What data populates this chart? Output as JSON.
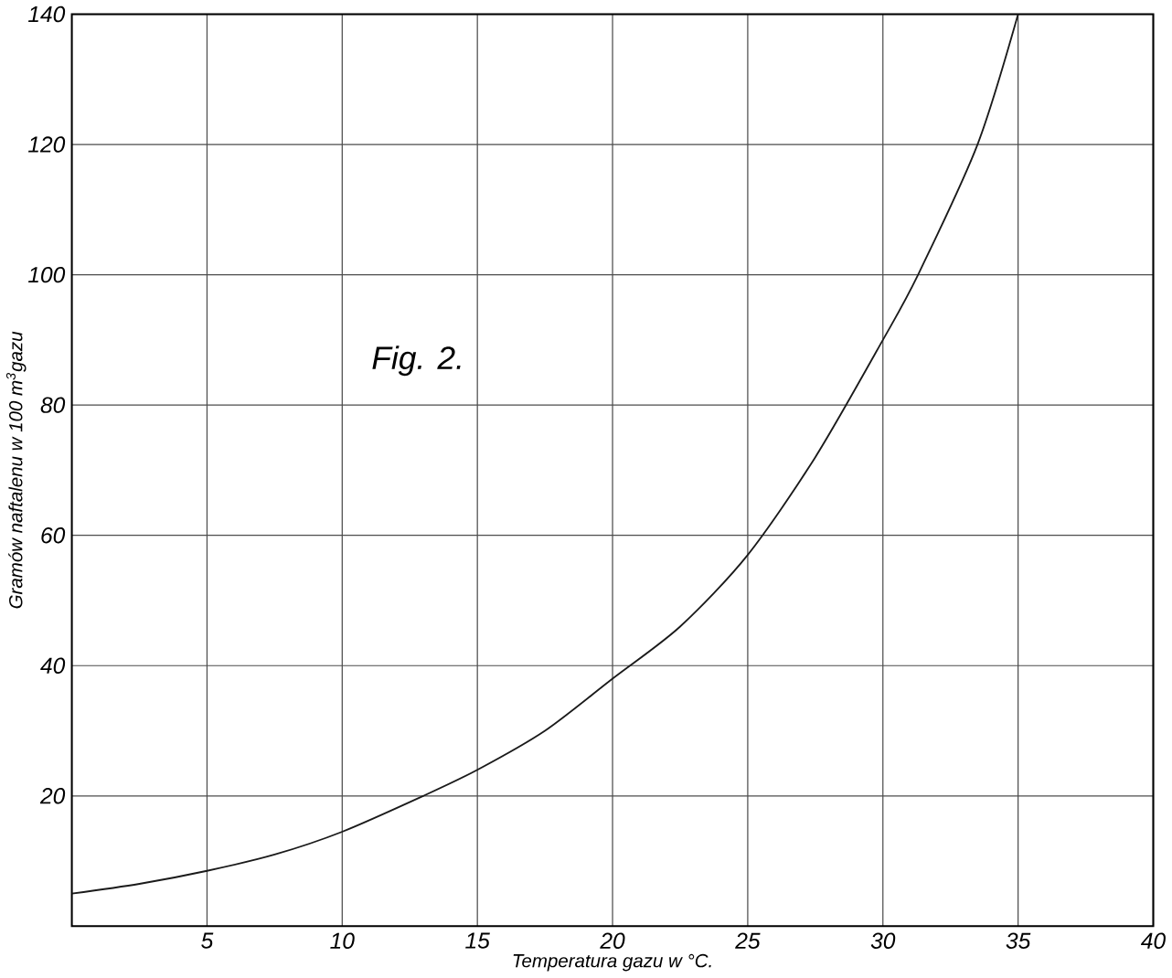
{
  "chart_data": {
    "type": "line",
    "xlabel": "Temperatura gazu w °C.",
    "ylabel": "Gramów naftalenu w 100 m$^{3}$gazu",
    "annotations": [
      "Fig. 2."
    ],
    "x": [
      0,
      2.5,
      5,
      7.5,
      10,
      13,
      15,
      17.5,
      20,
      22.5,
      25,
      27.5,
      30,
      31.3,
      33.5,
      35
    ],
    "series": [
      {
        "color": "#1a1a1a",
        "values": [
          5,
          6.5,
          8.5,
          11,
          14.5,
          20,
          24,
          30,
          38,
          46,
          57,
          72,
          90,
          100,
          120,
          140
        ]
      }
    ],
    "xlim": [
      0,
      40
    ],
    "ylim": [
      0,
      140
    ],
    "xticks": [
      5,
      10,
      15,
      20,
      25,
      30,
      35,
      40
    ],
    "yticks": [
      20,
      40,
      60,
      80,
      100,
      120,
      140
    ],
    "grid": true,
    "marker": "none",
    "line_style": "solid"
  }
}
